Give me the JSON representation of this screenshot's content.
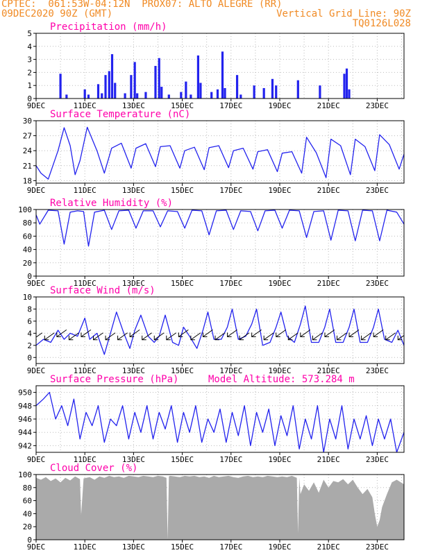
{
  "header": {
    "line1": "CPTEC:  061:53W-04:12N  PROX07: ALTO ALEGRE (RR)",
    "line2": "09DEC2020 90Z (GMT)",
    "grid_note": "Vertical Grid Line: 90Z",
    "code": "TQ0126L028"
  },
  "colors": {
    "header": "#f08a24",
    "title": "#ff00aa",
    "series": "#2222ee",
    "cloud": "#aaaaaa",
    "grid": "#bbbbbb"
  },
  "x_labels": [
    "9DEC",
    "11DEC",
    "13DEC",
    "15DEC",
    "17DEC",
    "19DEC",
    "21DEC",
    "23DEC"
  ],
  "chart_data": [
    {
      "type": "bar",
      "title": "Precipitation (mm/h)",
      "ylim": [
        0,
        5
      ],
      "yticks": [
        0,
        1,
        2,
        3,
        4,
        5
      ],
      "x_range_days": [
        9.0,
        24.1
      ],
      "events": [
        {
          "day": 10.0,
          "value": 1.9
        },
        {
          "day": 10.25,
          "value": 0.3
        },
        {
          "day": 11.0,
          "value": 0.7
        },
        {
          "day": 11.15,
          "value": 0.3
        },
        {
          "day": 11.55,
          "value": 1.1
        },
        {
          "day": 11.7,
          "value": 0.4
        },
        {
          "day": 11.85,
          "value": 1.8
        },
        {
          "day": 12.0,
          "value": 2.1
        },
        {
          "day": 12.12,
          "value": 3.4
        },
        {
          "day": 12.24,
          "value": 1.2
        },
        {
          "day": 12.65,
          "value": 0.4
        },
        {
          "day": 12.9,
          "value": 1.8
        },
        {
          "day": 13.05,
          "value": 2.8
        },
        {
          "day": 13.15,
          "value": 0.4
        },
        {
          "day": 13.5,
          "value": 0.5
        },
        {
          "day": 13.9,
          "value": 2.5
        },
        {
          "day": 14.05,
          "value": 3.1
        },
        {
          "day": 14.15,
          "value": 0.9
        },
        {
          "day": 14.45,
          "value": 0.3
        },
        {
          "day": 14.95,
          "value": 0.5
        },
        {
          "day": 15.15,
          "value": 1.3
        },
        {
          "day": 15.35,
          "value": 0.3
        },
        {
          "day": 15.65,
          "value": 3.3
        },
        {
          "day": 15.75,
          "value": 1.2
        },
        {
          "day": 16.2,
          "value": 0.5
        },
        {
          "day": 16.45,
          "value": 0.7
        },
        {
          "day": 16.65,
          "value": 3.6
        },
        {
          "day": 16.75,
          "value": 0.8
        },
        {
          "day": 17.25,
          "value": 1.8
        },
        {
          "day": 17.4,
          "value": 0.3
        },
        {
          "day": 17.95,
          "value": 1.0
        },
        {
          "day": 18.35,
          "value": 0.8
        },
        {
          "day": 18.7,
          "value": 1.5
        },
        {
          "day": 18.85,
          "value": 1.0
        },
        {
          "day": 19.75,
          "value": 1.4
        },
        {
          "day": 20.65,
          "value": 1.0
        },
        {
          "day": 21.65,
          "value": 1.9
        },
        {
          "day": 21.75,
          "value": 2.3
        },
        {
          "day": 21.85,
          "value": 0.7
        }
      ]
    },
    {
      "type": "line",
      "title": "Surface Temperature (nC)",
      "ylim": [
        17.5,
        30
      ],
      "yticks": [
        18,
        21,
        24,
        27,
        30
      ],
      "x_range_days": [
        9.0,
        24.1
      ],
      "series": [
        {
          "days": [
            9.0,
            9.2,
            9.5,
            9.9,
            10.15,
            10.4,
            10.6,
            10.8,
            11.1,
            11.5,
            11.8,
            12.1,
            12.5,
            12.9,
            13.1,
            13.5,
            13.9,
            14.1,
            14.5,
            14.9,
            15.1,
            15.5,
            15.9,
            16.1,
            16.5,
            16.9,
            17.1,
            17.5,
            17.9,
            18.1,
            18.5,
            18.9,
            19.1,
            19.5,
            19.9,
            20.1,
            20.5,
            20.9,
            21.1,
            21.5,
            21.9,
            22.1,
            22.5,
            22.9,
            23.1,
            23.5,
            23.9,
            24.1
          ],
          "values": [
            21,
            19.5,
            18.3,
            24,
            28.6,
            25,
            19.2,
            22,
            28.7,
            24,
            19.5,
            24.5,
            25.5,
            20.5,
            24.5,
            25.4,
            20.8,
            24.8,
            25,
            20.5,
            24,
            24.7,
            20.2,
            24.6,
            25,
            20.6,
            24,
            24.5,
            20.3,
            23.8,
            24.2,
            19.8,
            23.5,
            23.8,
            19.5,
            26.7,
            23.6,
            18.6,
            26.3,
            25,
            19.2,
            26.3,
            24.8,
            20,
            27.2,
            25.2,
            20.3,
            23.3
          ]
        }
      ]
    },
    {
      "type": "line",
      "title": "Relative Humidity (%)",
      "ylim": [
        0,
        100
      ],
      "yticks": [
        0,
        20,
        40,
        60,
        80,
        100
      ],
      "x_range_days": [
        9.0,
        24.1
      ],
      "series": [
        {
          "days": [
            9.0,
            9.15,
            9.5,
            9.9,
            10.15,
            10.4,
            10.7,
            10.95,
            11.15,
            11.4,
            11.8,
            12.1,
            12.4,
            12.8,
            13.1,
            13.4,
            13.8,
            14.1,
            14.4,
            14.8,
            15.1,
            15.4,
            15.8,
            16.1,
            16.4,
            16.8,
            17.1,
            17.4,
            17.8,
            18.1,
            18.4,
            18.8,
            19.1,
            19.4,
            19.8,
            20.1,
            20.4,
            20.8,
            21.1,
            21.4,
            21.8,
            22.1,
            22.4,
            22.8,
            23.1,
            23.4,
            23.8,
            24.1
          ],
          "values": [
            92,
            78,
            99,
            98,
            48,
            96,
            98,
            97,
            45,
            96,
            99,
            70,
            98,
            99,
            72,
            98,
            98,
            74,
            98,
            97,
            72,
            99,
            98,
            62,
            98,
            99,
            70,
            98,
            97,
            68,
            98,
            99,
            72,
            99,
            98,
            58,
            97,
            98,
            54,
            99,
            98,
            53,
            99,
            98,
            53,
            99,
            96,
            78
          ]
        }
      ]
    },
    {
      "type": "line",
      "title": "Surface Wind (m/s)",
      "ylim": [
        -1,
        10
      ],
      "yticks": [
        0,
        2,
        4,
        6,
        8,
        10
      ],
      "x_range_days": [
        9.0,
        24.1
      ],
      "series": [
        {
          "days": [
            9.0,
            9.3,
            9.6,
            9.9,
            10.15,
            10.4,
            10.7,
            11.0,
            11.2,
            11.5,
            11.8,
            12.05,
            12.3,
            12.6,
            12.85,
            13.05,
            13.3,
            13.6,
            13.85,
            14.05,
            14.3,
            14.6,
            14.85,
            15.05,
            15.3,
            15.6,
            15.85,
            16.05,
            16.3,
            16.6,
            16.85,
            17.05,
            17.3,
            17.6,
            17.85,
            18.05,
            18.3,
            18.6,
            18.85,
            19.05,
            19.3,
            19.6,
            19.85,
            20.05,
            20.3,
            20.6,
            20.85,
            21.05,
            21.3,
            21.6,
            21.85,
            22.05,
            22.3,
            22.6,
            22.85,
            23.05,
            23.3,
            23.6,
            23.85,
            24.1
          ],
          "values": [
            2.0,
            3.0,
            2.5,
            4.5,
            3.0,
            4.0,
            3.5,
            6.5,
            3.0,
            4.0,
            0.5,
            4.0,
            7.5,
            4.0,
            1.5,
            4.5,
            7.0,
            3.5,
            2.5,
            3.5,
            7.0,
            2.5,
            2.0,
            5.0,
            3.5,
            1.5,
            4.5,
            7.5,
            3.0,
            3.0,
            5.0,
            8.0,
            3.0,
            3.5,
            5.5,
            8.0,
            2.0,
            2.5,
            5.0,
            7.5,
            3.5,
            2.5,
            5.5,
            8.5,
            2.5,
            2.5,
            5.0,
            8.0,
            2.5,
            2.5,
            5.0,
            8.0,
            2.5,
            2.5,
            5.0,
            8.0,
            3.0,
            2.5,
            4.5,
            2.0
          ]
        }
      ],
      "arrow_days": [
        9.05,
        9.55,
        10.05,
        10.55,
        11.05,
        11.55,
        12.05,
        12.55,
        13.05,
        13.55,
        14.05,
        14.55,
        15.05,
        15.55,
        16.05,
        16.55,
        17.05,
        17.55,
        18.05,
        18.55,
        19.05,
        19.55,
        20.05,
        20.55,
        21.05,
        21.55,
        22.05,
        22.55,
        23.05,
        23.55,
        24.05
      ],
      "arrow_speeds": [
        2.0,
        2.5,
        4.5,
        3.5,
        6.5,
        3.0,
        4.0,
        4.0,
        4.5,
        3.5,
        3.5,
        2.5,
        5.0,
        3.0,
        7.5,
        3.0,
        8.0,
        3.5,
        8.0,
        2.5,
        7.5,
        2.5,
        8.5,
        2.5,
        8.0,
        2.5,
        8.0,
        2.5,
        8.0,
        2.5,
        2.0
      ],
      "arrow_dir": "from northeast (pointing southwest)"
    },
    {
      "type": "line",
      "title": "Surface Pressure (hPa)",
      "extra_label": "Model Altitude: 573.284 m",
      "ylim": [
        941,
        951
      ],
      "yticks": [
        942,
        944,
        946,
        948,
        950
      ],
      "x_range_days": [
        9.0,
        24.1
      ],
      "series": [
        {
          "days": [
            9.0,
            9.3,
            9.55,
            9.8,
            10.05,
            10.3,
            10.55,
            10.8,
            11.05,
            11.3,
            11.55,
            11.8,
            12.05,
            12.3,
            12.55,
            12.8,
            13.05,
            13.3,
            13.55,
            13.8,
            14.05,
            14.3,
            14.55,
            14.8,
            15.05,
            15.3,
            15.55,
            15.8,
            16.05,
            16.3,
            16.55,
            16.8,
            17.05,
            17.3,
            17.55,
            17.8,
            18.05,
            18.3,
            18.55,
            18.8,
            19.05,
            19.3,
            19.55,
            19.8,
            20.05,
            20.3,
            20.55,
            20.8,
            21.05,
            21.3,
            21.55,
            21.8,
            22.05,
            22.3,
            22.55,
            22.8,
            23.05,
            23.3,
            23.55,
            23.8,
            24.1
          ],
          "values": [
            948,
            949,
            950,
            946,
            948,
            945,
            949,
            943,
            947,
            945,
            948,
            942.5,
            946,
            945,
            948,
            943,
            947,
            944,
            948,
            943,
            947,
            944.5,
            948,
            942.5,
            947,
            944,
            948,
            942.5,
            946,
            944,
            947.5,
            942.5,
            947,
            943.5,
            948,
            942,
            947,
            944,
            947.5,
            942,
            946.5,
            943.5,
            948,
            941.5,
            946,
            943,
            948,
            941,
            946,
            943,
            948,
            941.5,
            946,
            943,
            946.5,
            942,
            946,
            943,
            946,
            941,
            944
          ]
        }
      ]
    },
    {
      "type": "area",
      "title": "Cloud Cover (%)",
      "ylim": [
        0,
        100
      ],
      "yticks": [
        0,
        20,
        40,
        60,
        80,
        100
      ],
      "x_range_days": [
        9.0,
        24.1
      ],
      "series": [
        {
          "days": [
            9.0,
            9.2,
            9.4,
            9.6,
            9.8,
            10.0,
            10.2,
            10.4,
            10.6,
            10.8,
            10.85,
            10.95,
            11.2,
            11.4,
            11.6,
            11.8,
            12.0,
            12.2,
            12.4,
            12.6,
            12.8,
            13.0,
            13.2,
            13.4,
            13.6,
            13.8,
            14.0,
            14.2,
            14.35,
            14.4,
            14.45,
            14.5,
            14.7,
            14.9,
            15.1,
            15.3,
            15.5,
            15.7,
            15.9,
            16.1,
            16.3,
            16.5,
            16.7,
            16.9,
            17.1,
            17.3,
            17.5,
            17.7,
            17.9,
            18.1,
            18.3,
            18.5,
            18.7,
            18.9,
            19.1,
            19.3,
            19.5,
            19.7,
            19.75,
            19.8,
            19.85,
            20.0,
            20.2,
            20.4,
            20.6,
            20.8,
            21.0,
            21.2,
            21.4,
            21.6,
            21.8,
            22.0,
            22.2,
            22.4,
            22.6,
            22.8,
            22.9,
            23.0,
            23.1,
            23.2,
            23.4,
            23.6,
            23.8,
            24.1
          ],
          "values": [
            95,
            92,
            96,
            90,
            94,
            88,
            95,
            91,
            97,
            93,
            38,
            94,
            96,
            92,
            97,
            95,
            98,
            96,
            97,
            95,
            98,
            97,
            96,
            98,
            97,
            96,
            98,
            97,
            95,
            0,
            97,
            98,
            97,
            96,
            98,
            97,
            98,
            96,
            97,
            95,
            98,
            96,
            97,
            98,
            96,
            95,
            97,
            98,
            96,
            97,
            96,
            98,
            97,
            96,
            97,
            96,
            98,
            95,
            10,
            95,
            70,
            85,
            75,
            88,
            72,
            92,
            80,
            90,
            88,
            93,
            85,
            92,
            80,
            70,
            78,
            65,
            40,
            20,
            30,
            50,
            70,
            88,
            92,
            85
          ]
        }
      ]
    }
  ],
  "subplots": [
    {
      "title": "Precipitation (mm/h)"
    },
    {
      "title": "Surface Temperature (nC)"
    },
    {
      "title": "Relative Humidity (%)"
    },
    {
      "title": "Surface Wind (m/s)"
    },
    {
      "title": "Surface Pressure (hPa)",
      "extra": "Model Altitude: 573.284 m"
    },
    {
      "title": "Cloud Cover (%)"
    }
  ]
}
